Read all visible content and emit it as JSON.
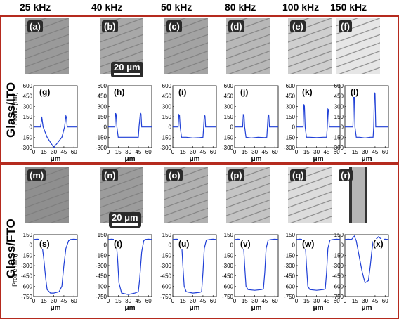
{
  "frequencies": [
    "25 kHz",
    "40 kHz",
    "50 kHz",
    "80 kHz",
    "100 kHz",
    "150 kHz"
  ],
  "colors": {
    "frame": "#b52a1e",
    "trace": "#1f3fd6"
  },
  "rows": [
    {
      "row_label": "Glass/ITO",
      "y_axis_label": "Profile (nm)",
      "scale_bar": "20 μm",
      "image_labels": [
        "(a)",
        "(b)",
        "(c)",
        "(d)",
        "(e)",
        "(f)"
      ],
      "graph_labels": [
        "(g)",
        "(h)",
        "(i)",
        "(j)",
        "(k)",
        "(l)"
      ],
      "y_ticks": [
        "600",
        "450",
        "300",
        "150",
        "0",
        "-150",
        "-300"
      ],
      "x_ticks": [
        "0",
        "15",
        "30",
        "45",
        "60"
      ],
      "x_label": "μm"
    },
    {
      "row_label": "Glass/FTO",
      "y_axis_label": "Profile (nm)",
      "scale_bar": "20 μm",
      "image_labels": [
        "(m)",
        "(n)",
        "(o)",
        "(p)",
        "(q)",
        "(r)"
      ],
      "graph_labels": [
        "(s)",
        "(t)",
        "(u)",
        "(v)",
        "(w)",
        "(x)"
      ],
      "y_ticks": [
        "150",
        "0",
        "-150",
        "-300",
        "-450",
        "-600",
        "-750"
      ],
      "x_ticks": [
        "0",
        "15",
        "30",
        "45",
        "60"
      ],
      "x_label": "μm"
    }
  ],
  "chart_data": [
    {
      "type": "line",
      "panel": "(g)",
      "ylim": [
        -300,
        600
      ],
      "xlim": [
        0,
        65
      ],
      "x": [
        0,
        8,
        10,
        11,
        12,
        14,
        20,
        30,
        38,
        42,
        46,
        48,
        49,
        50,
        52,
        65
      ],
      "values": [
        0,
        0,
        0,
        50,
        150,
        0,
        -150,
        -300,
        -200,
        -150,
        0,
        160,
        140,
        0,
        0,
        0
      ]
    },
    {
      "type": "line",
      "panel": "(h)",
      "ylim": [
        -300,
        600
      ],
      "xlim": [
        0,
        65
      ],
      "x": [
        0,
        10,
        11,
        12,
        13,
        15,
        20,
        30,
        40,
        45,
        46,
        48,
        49,
        50,
        65
      ],
      "values": [
        0,
        0,
        200,
        180,
        0,
        -150,
        -150,
        -150,
        -150,
        -150,
        0,
        200,
        190,
        0,
        0
      ]
    },
    {
      "type": "line",
      "panel": "(i)",
      "ylim": [
        -300,
        600
      ],
      "xlim": [
        0,
        65
      ],
      "x": [
        0,
        8,
        9,
        10,
        11,
        13,
        20,
        30,
        40,
        45,
        46,
        47,
        48,
        49,
        65
      ],
      "values": [
        0,
        0,
        180,
        170,
        0,
        -150,
        -150,
        -160,
        -155,
        -150,
        0,
        170,
        160,
        0,
        0
      ]
    },
    {
      "type": "line",
      "panel": "(j)",
      "ylim": [
        -300,
        600
      ],
      "xlim": [
        0,
        65
      ],
      "x": [
        0,
        12,
        13,
        14,
        15,
        17,
        25,
        35,
        45,
        48,
        49,
        50,
        51,
        52,
        65
      ],
      "values": [
        0,
        0,
        180,
        170,
        0,
        -150,
        -160,
        -150,
        -155,
        -150,
        0,
        180,
        170,
        0,
        0
      ]
    },
    {
      "type": "line",
      "panel": "(k)",
      "ylim": [
        -300,
        600
      ],
      "xlim": [
        0,
        65
      ],
      "x": [
        0,
        10,
        11,
        12,
        13,
        15,
        20,
        30,
        40,
        45,
        46,
        47,
        48,
        49,
        65
      ],
      "values": [
        0,
        0,
        330,
        300,
        0,
        -150,
        -150,
        -155,
        -150,
        -150,
        0,
        260,
        250,
        0,
        0
      ]
    },
    {
      "type": "line",
      "panel": "(l)",
      "ylim": [
        -300,
        600
      ],
      "xlim": [
        0,
        65
      ],
      "x": [
        0,
        12,
        13,
        14,
        15,
        17,
        22,
        30,
        38,
        42,
        43,
        44,
        45,
        46,
        65
      ],
      "values": [
        0,
        0,
        480,
        470,
        0,
        -150,
        -150,
        -160,
        -150,
        -150,
        0,
        500,
        480,
        0,
        0
      ]
    },
    {
      "type": "line",
      "panel": "(s)",
      "ylim": [
        -750,
        150
      ],
      "xlim": [
        0,
        65
      ],
      "x": [
        0,
        5,
        10,
        12,
        15,
        18,
        20,
        25,
        30,
        38,
        42,
        45,
        48,
        52,
        55,
        60,
        65
      ],
      "values": [
        80,
        85,
        80,
        40,
        -200,
        -500,
        -650,
        -700,
        -700,
        -680,
        -600,
        -300,
        -50,
        60,
        80,
        85,
        80
      ]
    },
    {
      "type": "line",
      "panel": "(t)",
      "ylim": [
        -750,
        150
      ],
      "xlim": [
        0,
        65
      ],
      "x": [
        0,
        5,
        10,
        12,
        14,
        16,
        20,
        30,
        40,
        45,
        47,
        50,
        53,
        55,
        60,
        65
      ],
      "values": [
        80,
        85,
        80,
        50,
        -200,
        -550,
        -700,
        -720,
        -700,
        -680,
        -500,
        -100,
        60,
        80,
        85,
        80
      ]
    },
    {
      "type": "line",
      "panel": "(u)",
      "ylim": [
        -750,
        150
      ],
      "xlim": [
        0,
        65
      ],
      "x": [
        0,
        5,
        10,
        13,
        15,
        17,
        20,
        30,
        40,
        43,
        45,
        47,
        50,
        55,
        60,
        65
      ],
      "values": [
        80,
        85,
        80,
        50,
        -300,
        -600,
        -680,
        -700,
        -690,
        -680,
        -400,
        -50,
        70,
        80,
        85,
        80
      ]
    },
    {
      "type": "line",
      "panel": "(v)",
      "ylim": [
        -750,
        150
      ],
      "xlim": [
        0,
        65
      ],
      "x": [
        0,
        5,
        10,
        13,
        15,
        17,
        20,
        30,
        40,
        43,
        45,
        47,
        50,
        55,
        60,
        65
      ],
      "values": [
        80,
        85,
        80,
        50,
        -300,
        -600,
        -650,
        -660,
        -650,
        -640,
        -400,
        -50,
        70,
        80,
        85,
        80
      ]
    },
    {
      "type": "line",
      "panel": "(w)",
      "ylim": [
        -750,
        150
      ],
      "xlim": [
        0,
        65
      ],
      "x": [
        0,
        5,
        10,
        13,
        15,
        17,
        20,
        30,
        40,
        43,
        45,
        47,
        50,
        55,
        60,
        65
      ],
      "values": [
        80,
        85,
        80,
        50,
        -300,
        -600,
        -650,
        -660,
        -650,
        -640,
        -400,
        -50,
        70,
        80,
        85,
        80
      ]
    },
    {
      "type": "line",
      "panel": "(x)",
      "ylim": [
        -750,
        150
      ],
      "xlim": [
        0,
        65
      ],
      "x": [
        0,
        5,
        10,
        14,
        17,
        20,
        23,
        26,
        30,
        35,
        38,
        40,
        42,
        46,
        50,
        55,
        60,
        65
      ],
      "values": [
        80,
        85,
        80,
        130,
        60,
        -100,
        -250,
        -400,
        -550,
        -520,
        -300,
        -100,
        50,
        80,
        120,
        80,
        85,
        80
      ]
    }
  ]
}
